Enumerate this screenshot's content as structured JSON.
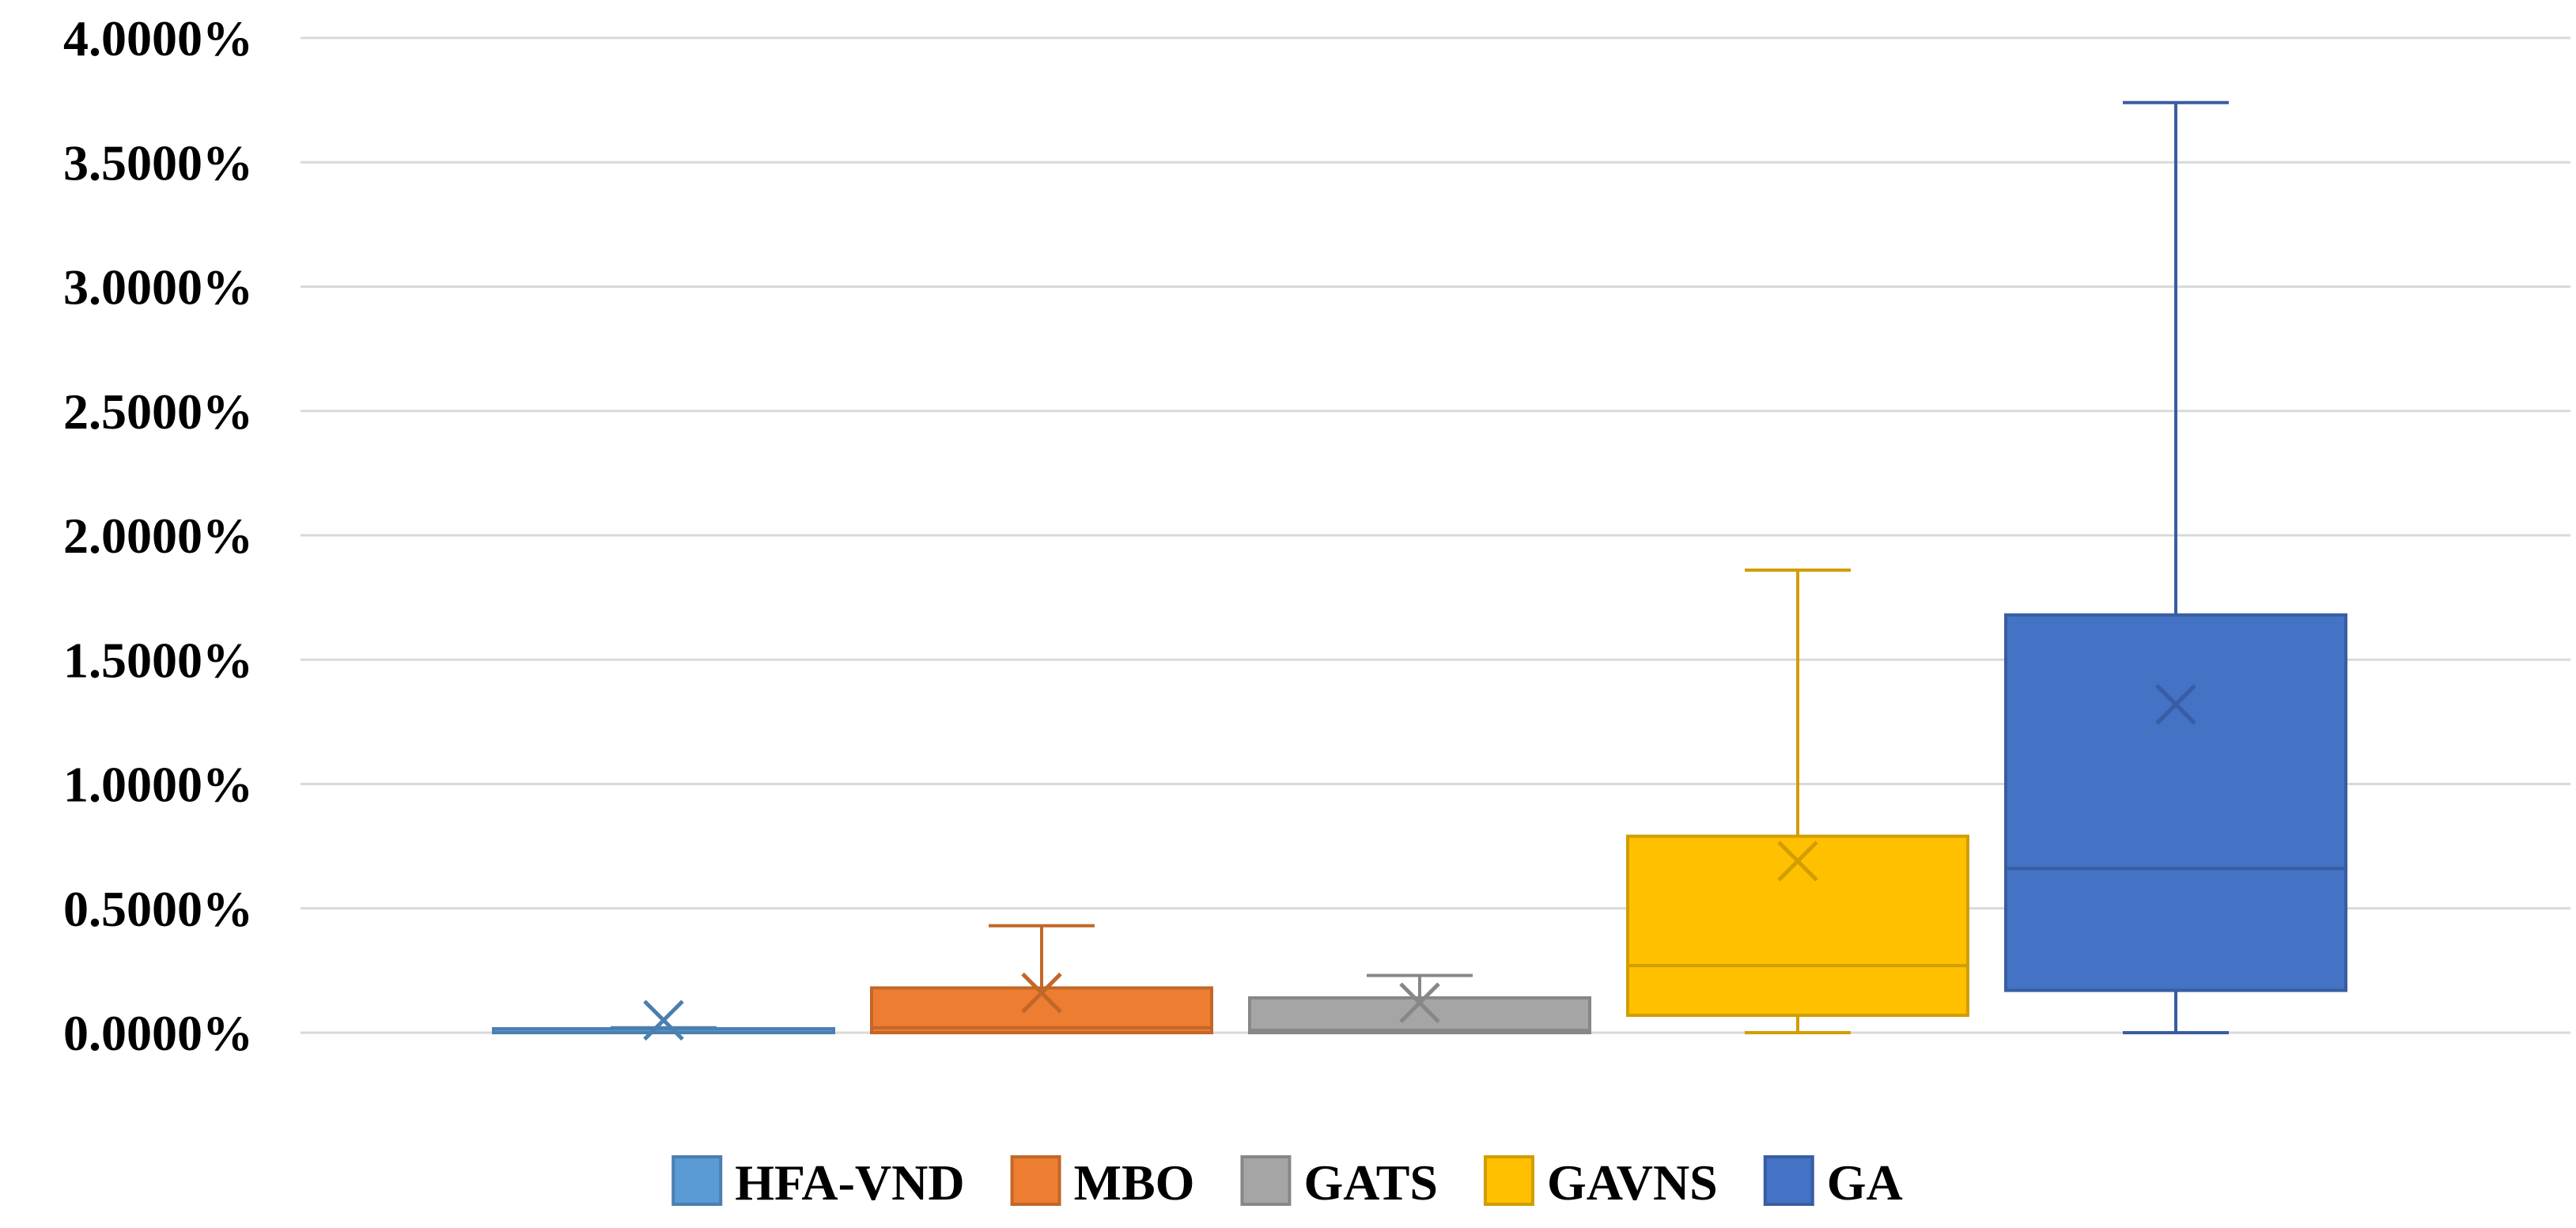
{
  "chart_data": {
    "type": "boxplot",
    "title": "",
    "xlabel": "",
    "ylabel": "",
    "ylim": [
      0,
      4
    ],
    "y_ticks": [
      "0.0000%",
      "0.5000%",
      "1.0000%",
      "1.5000%",
      "2.0000%",
      "2.5000%",
      "3.0000%",
      "3.5000%",
      "4.0000%"
    ],
    "y_tick_values": [
      0,
      0.5,
      1.0,
      1.5,
      2.0,
      2.5,
      3.0,
      3.5,
      4.0
    ],
    "grid": true,
    "legend_position": "bottom",
    "series": [
      {
        "name": "HFA-VND",
        "color": "#5B9BD5",
        "min": 0.0,
        "q1": 0.0,
        "median": 0.0,
        "q3": 0.01,
        "max": 0.02,
        "mean": 0.05
      },
      {
        "name": "MBO",
        "color": "#ED7D31",
        "min": 0.0,
        "q1": 0.0,
        "median": 0.02,
        "q3": 0.18,
        "max": 0.43,
        "mean": 0.16
      },
      {
        "name": "GATS",
        "color": "#A5A5A5",
        "min": 0.0,
        "q1": 0.0,
        "median": 0.01,
        "q3": 0.14,
        "max": 0.23,
        "mean": 0.12
      },
      {
        "name": "GAVNS",
        "color": "#FFC000",
        "min": 0.0,
        "q1": 0.07,
        "median": 0.27,
        "q3": 0.79,
        "max": 1.86,
        "mean": 0.69
      },
      {
        "name": "GA",
        "color": "#4472C4",
        "min": 0.0,
        "q1": 0.17,
        "median": 0.66,
        "q3": 1.68,
        "max": 3.74,
        "mean": 1.32
      }
    ]
  }
}
